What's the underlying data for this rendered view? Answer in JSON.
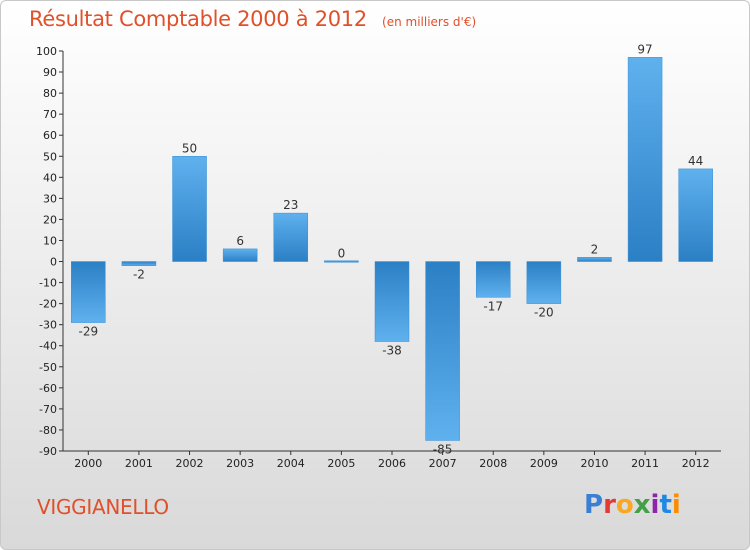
{
  "header": {
    "title": "Résultat Comptable 2000 à 2012",
    "subtitle": "(en milliers d'€)"
  },
  "footer": {
    "commune": "VIGGIANELLO",
    "logo": [
      "P",
      "r",
      "o",
      "x",
      "i",
      "t",
      "i"
    ]
  },
  "colors": {
    "accent": "#e0502a",
    "bar_light": "#5fb1ee",
    "bar_dark": "#2b7fc4"
  },
  "chart_data": {
    "type": "bar",
    "title": "Résultat Comptable 2000 à 2012",
    "subtitle": "(en milliers d'€)",
    "categories": [
      "2000",
      "2001",
      "2002",
      "2003",
      "2004",
      "2005",
      "2006",
      "2007",
      "2008",
      "2009",
      "2010",
      "2011",
      "2012"
    ],
    "values": [
      -29,
      -2,
      50,
      6,
      23,
      0,
      -38,
      -85,
      -17,
      -20,
      2,
      97,
      44
    ],
    "ylim": [
      -90,
      100
    ],
    "yticks": [
      100,
      90,
      80,
      70,
      60,
      50,
      40,
      30,
      20,
      10,
      0,
      -10,
      -20,
      -30,
      -40,
      -50,
      -60,
      -70,
      -80,
      -90
    ],
    "xlabel": "",
    "ylabel": "",
    "grid": false,
    "legend": "none"
  }
}
